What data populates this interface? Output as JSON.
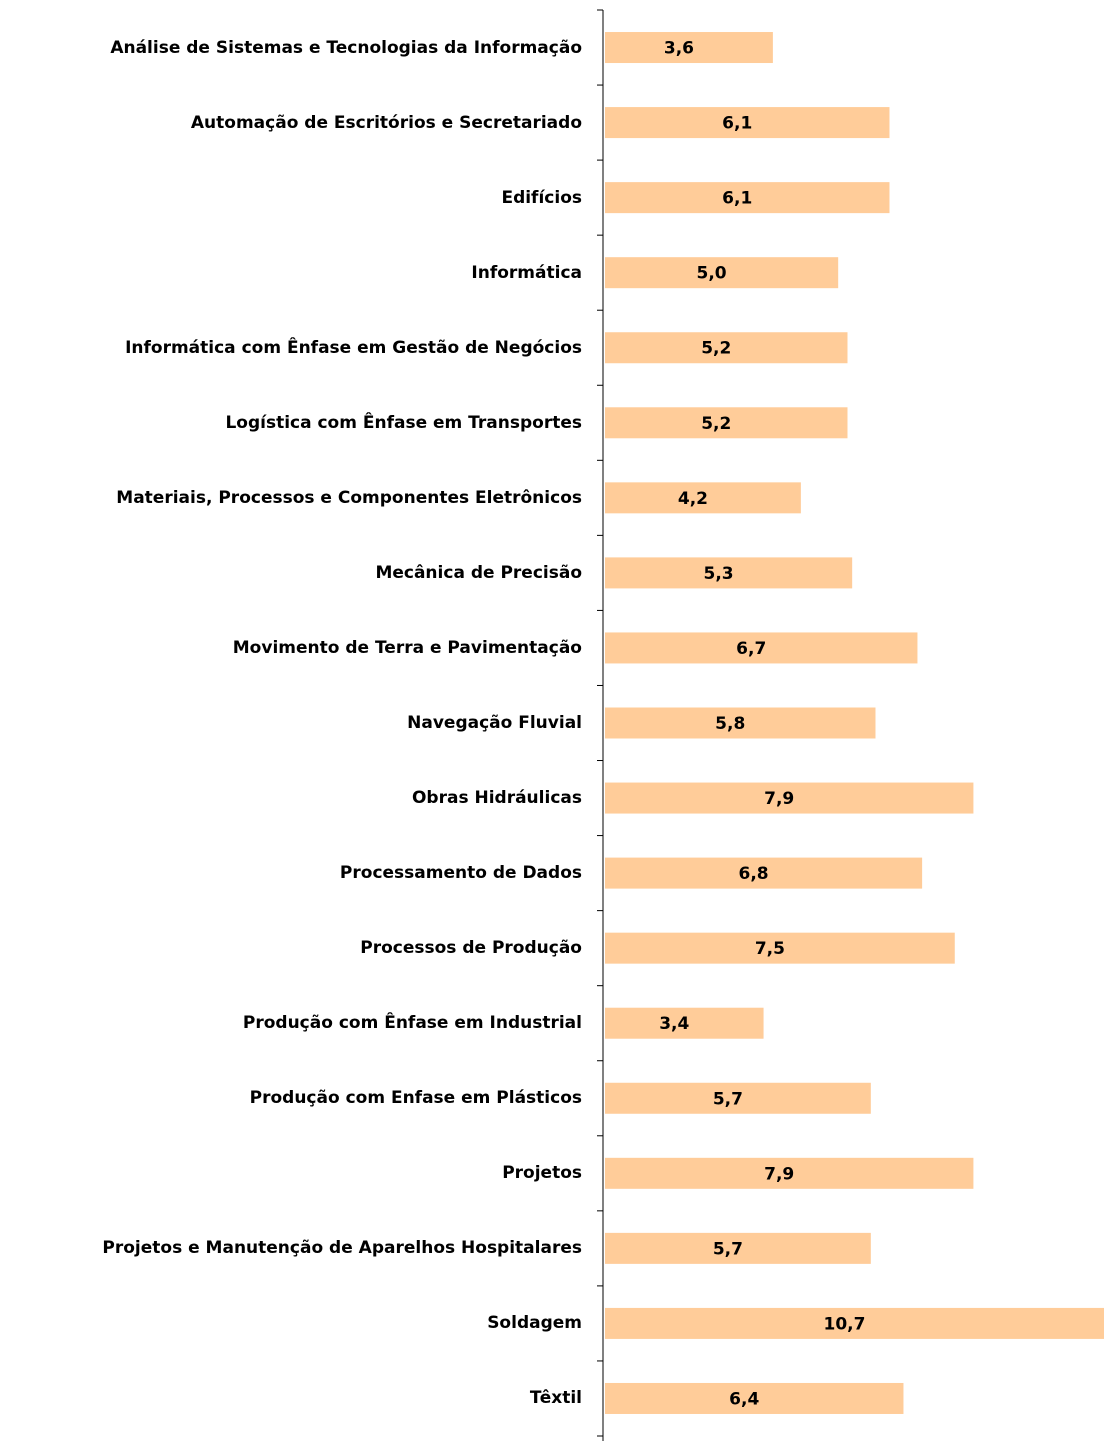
{
  "chart_data": {
    "type": "bar",
    "orientation": "horizontal",
    "categories": [
      "Análise de Sistemas e Tecnologias da Informação",
      "Automação de Escritórios e Secretariado",
      "Edifícios",
      "Informática",
      "Informática com Ênfase em Gestão de Negócios",
      "Logística com Ênfase em Transportes",
      "Materiais, Processos e Componentes Eletrônicos",
      "Mecânica de Precisão",
      "Movimento de Terra e Pavimentação",
      "Navegação Fluvial",
      "Obras Hidráulicas",
      "Processamento de Dados",
      "Processos de Produção",
      "Produção com Ênfase em Industrial",
      "Produção com Enfase em Plásticos",
      "Projetos",
      "Projetos e Manutenção de Aparelhos Hospitalares",
      "Soldagem",
      "Têxtil"
    ],
    "values": [
      3.6,
      6.1,
      6.1,
      5.0,
      5.2,
      5.2,
      4.2,
      5.3,
      6.7,
      5.8,
      7.9,
      6.8,
      7.5,
      3.4,
      5.7,
      7.9,
      5.7,
      10.7,
      6.4
    ],
    "value_labels": [
      "3,6",
      "6,1",
      "6,1",
      "5,0",
      "5,2",
      "5,2",
      "4,2",
      "5,3",
      "6,7",
      "5,8",
      "7,9",
      "6,8",
      "7,5",
      "3,4",
      "5,7",
      "7,9",
      "5,7",
      "10,7",
      "6,4"
    ],
    "color": "#ffcc99",
    "xlim": [
      0,
      10.7
    ]
  }
}
